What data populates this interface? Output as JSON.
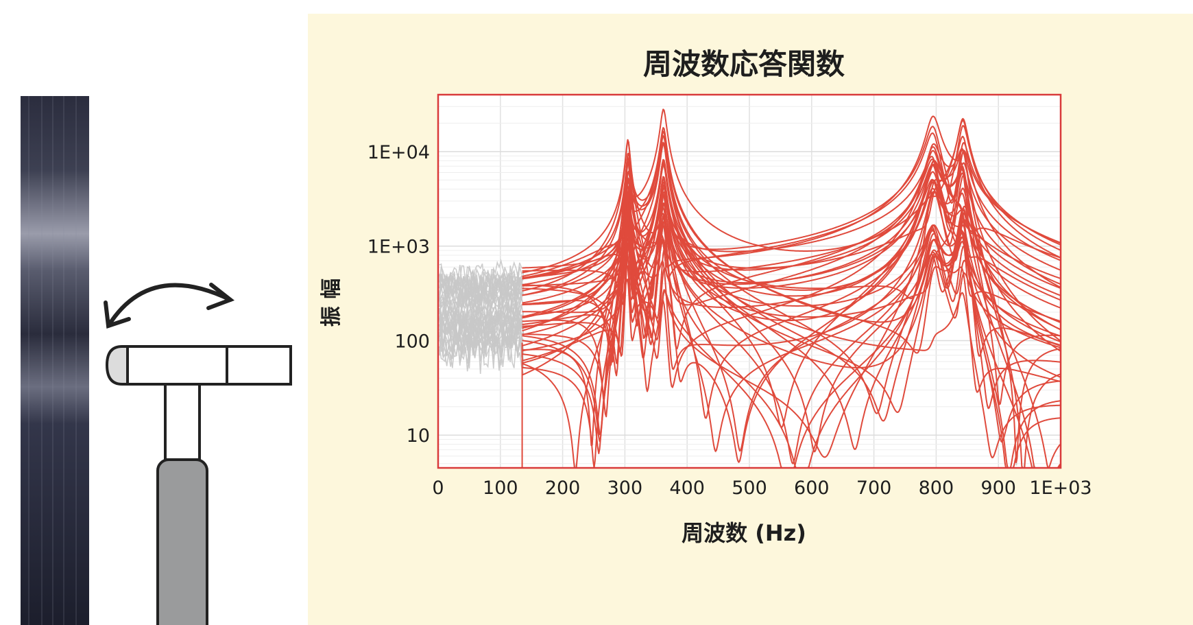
{
  "chart_data": {
    "type": "line",
    "title": "周波数応答関数",
    "xlabel": "周波数 (Hz)",
    "ylabel": "振 幅",
    "x_scale": "linear",
    "y_scale": "log",
    "xlim": [
      0,
      1000
    ],
    "ylim": [
      4.5,
      40000
    ],
    "x_ticks": [
      0,
      100,
      200,
      300,
      400,
      500,
      600,
      700,
      800,
      900,
      1000
    ],
    "x_tick_labels": [
      "0",
      "100",
      "200",
      "300",
      "400",
      "500",
      "600",
      "700",
      "800",
      "900",
      "1E+03"
    ],
    "y_ticks": [
      10,
      100,
      1000,
      10000
    ],
    "y_tick_labels": [
      "10",
      "100",
      "1E+03",
      "1E+04"
    ],
    "grid": true,
    "highlight_range": [
      135,
      1000
    ],
    "resonance_peaks_hz": [
      305,
      362,
      795,
      843
    ],
    "series_color": "#e04a3c",
    "background_series_color": "#c8c8c8",
    "frame_color": "#d93a3a",
    "panel_color": "#fdf7dc"
  },
  "illustration": {
    "sample_strip": "dark-fiber-strip",
    "tool": "impact-hammer-icon",
    "motion": "swing-arrow-icon"
  }
}
